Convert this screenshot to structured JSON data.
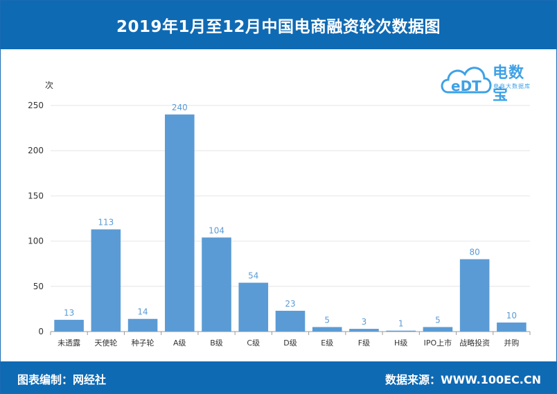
{
  "header": {
    "title": "2019年1月至12月中国电商融资轮次数据图"
  },
  "footer": {
    "left": "图表编制：网经社",
    "right": "数据来源：WWW.100EC.CN"
  },
  "logo": {
    "text": "电数宝",
    "subtitle": "电商大数据库",
    "mark": "eDT",
    "color": "#3ea1e6"
  },
  "colors": {
    "bar": "#5b9bd5",
    "label": "#5b9bd5",
    "header_bg": "#0f6ab4",
    "grid": "#e6e6e6"
  },
  "chart_data": {
    "type": "bar",
    "title": "",
    "xlabel": "",
    "ylabel": "次",
    "ylim": [
      0,
      250
    ],
    "yticks": [
      0,
      50,
      100,
      150,
      200,
      250
    ],
    "grid": true,
    "categories": [
      "未透露",
      "天使轮",
      "种子轮",
      "A级",
      "B级",
      "C级",
      "D级",
      "E级",
      "F级",
      "H级",
      "IPO上市",
      "战略投资",
      "并购"
    ],
    "values": [
      13,
      113,
      14,
      240,
      104,
      54,
      23,
      5,
      3,
      1,
      5,
      80,
      10
    ]
  }
}
